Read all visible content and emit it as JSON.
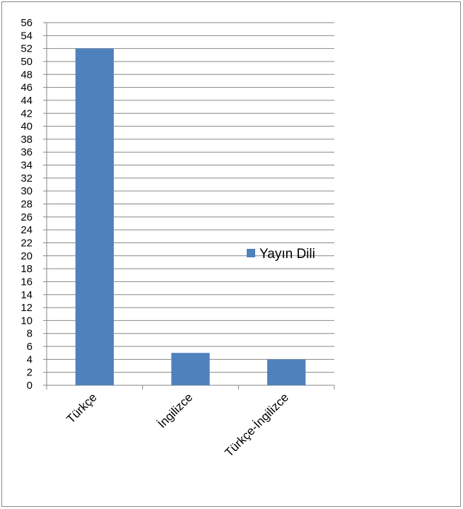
{
  "chart_data": {
    "type": "bar",
    "categories": [
      "Türkçe",
      "İngilizce",
      "Türkçe-İngilizce"
    ],
    "series": [
      {
        "name": "Yayın Dili",
        "values": [
          52,
          5,
          4
        ]
      }
    ],
    "ylim": [
      0,
      56
    ],
    "ytick_step": 2,
    "grid": true,
    "legend_position": "right",
    "bar_color": "#4F81BD",
    "grid_color": "#868686"
  }
}
